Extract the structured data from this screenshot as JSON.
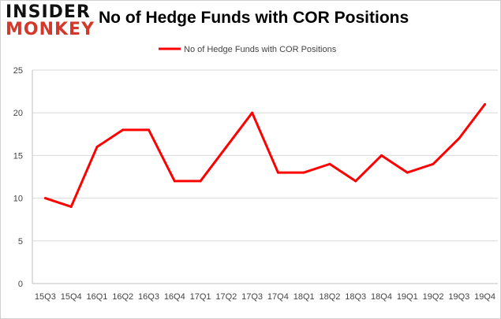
{
  "logo": {
    "line1": "INSIDER",
    "line2": "MONKEY"
  },
  "chart_data": {
    "type": "line",
    "title": "No of Hedge Funds with COR Positions",
    "categories": [
      "15Q3",
      "15Q4",
      "16Q1",
      "16Q2",
      "16Q3",
      "16Q4",
      "17Q1",
      "17Q2",
      "17Q3",
      "17Q4",
      "18Q1",
      "18Q2",
      "18Q3",
      "18Q4",
      "19Q1",
      "19Q2",
      "19Q3",
      "19Q4"
    ],
    "series": [
      {
        "name": "No of Hedge Funds with COR Positions",
        "values": [
          10,
          9,
          16,
          18,
          18,
          12,
          12,
          16,
          20,
          13,
          13,
          14,
          12,
          15,
          13,
          14,
          17,
          21
        ],
        "color": "#ff0000"
      }
    ],
    "ylim": [
      0,
      25
    ],
    "yticks": [
      0,
      5,
      10,
      15,
      20,
      25
    ],
    "grid": true,
    "legend": "top"
  }
}
